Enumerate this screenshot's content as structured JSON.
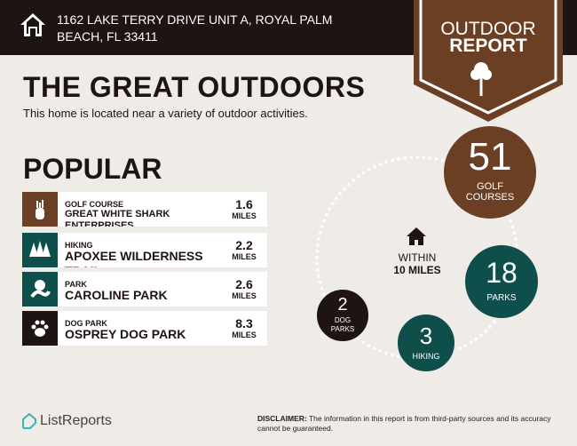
{
  "header": {
    "address": "1162 LAKE TERRY DRIVE UNIT A, ROYAL PALM BEACH, FL 33411",
    "badge_line1": "OUTDOOR",
    "badge_line2": "REPORT"
  },
  "title": "THE GREAT OUTDOORS",
  "subtitle": "This home is located near a variety of outdoor activities.",
  "popular": {
    "heading": "POPULAR",
    "items": [
      {
        "category": "GOLF COURSE",
        "name": "GREAT WHITE SHARK ENTERPRISES",
        "distance": "1.6",
        "unit": "MILES",
        "icon": "golf-bag-icon",
        "color": "#6b3f24"
      },
      {
        "category": "HIKING",
        "name": "APOXEE WILDERNESS TRAIL",
        "distance": "2.2",
        "unit": "MILES",
        "icon": "trees-icon",
        "color": "#0e4f4b"
      },
      {
        "category": "PARK",
        "name": "CAROLINE PARK",
        "distance": "2.6",
        "unit": "MILES",
        "icon": "park-icon",
        "color": "#0e4f4b"
      },
      {
        "category": "DOG PARK",
        "name": "OSPREY DOG PARK",
        "distance": "8.3",
        "unit": "MILES",
        "icon": "paw-icon",
        "color": "#1e1412"
      }
    ]
  },
  "summary": {
    "within_line1": "WITHIN",
    "within_line2": "10 MILES",
    "counts": [
      {
        "value": "51",
        "label": "GOLF COURSES",
        "color": "#6b3f24"
      },
      {
        "value": "18",
        "label": "PARKS",
        "color": "#0e4f4b"
      },
      {
        "value": "3",
        "label": "HIKING",
        "color": "#0e4f4b"
      },
      {
        "value": "2",
        "label": "DOG PARKS",
        "color": "#1e1412"
      }
    ]
  },
  "footer": {
    "brand": "ListReports",
    "disclaimer_label": "DISCLAIMER:",
    "disclaimer_text": " The information in this report is from third-party sources and its accuracy cannot be guaranteed."
  }
}
